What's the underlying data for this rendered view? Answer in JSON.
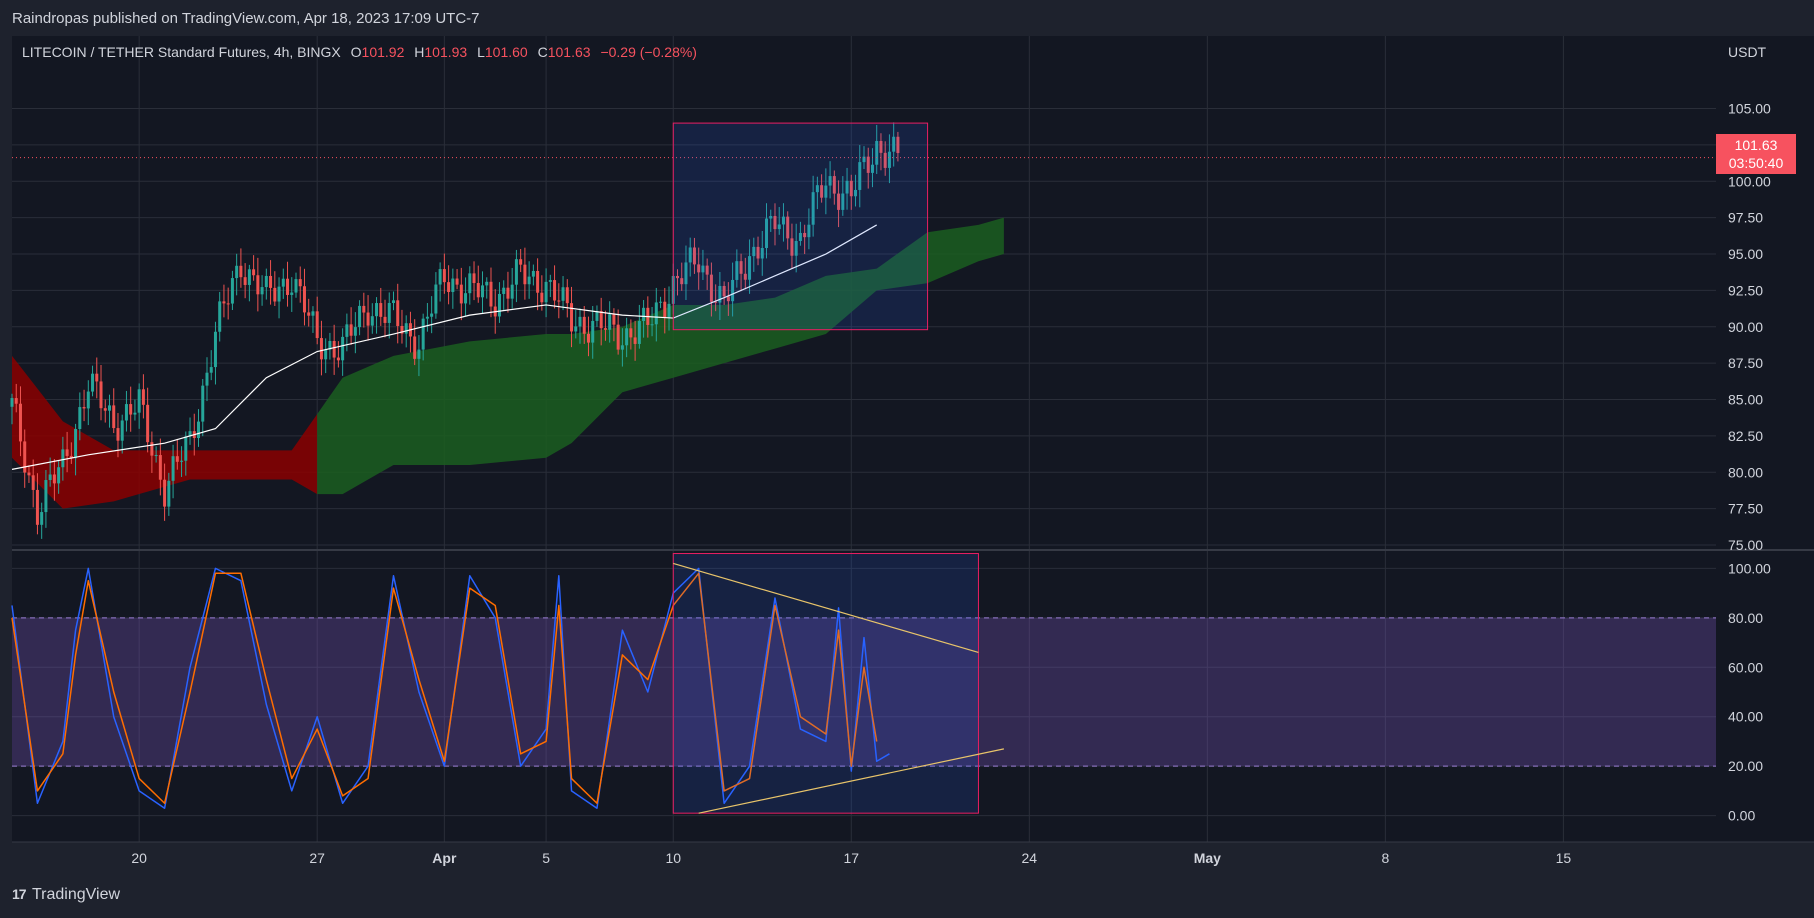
{
  "header": {
    "publisher": "Raindropas published on TradingView.com, Apr 18, 2023 17:09 UTC-7"
  },
  "legend": {
    "symbol": "LITECOIN / TETHER Standard Futures, 4h, BINGX",
    "o_label": "O",
    "o_value": "101.92",
    "h_label": "H",
    "h_value": "101.93",
    "l_label": "L",
    "l_value": "101.60",
    "c_label": "C",
    "c_value": "101.63",
    "change": "−0.29 (−0.28%)"
  },
  "axis": {
    "currency": "USDT"
  },
  "last_price": {
    "value": "101.63",
    "countdown": "03:50:40"
  },
  "brand": {
    "mark": "17",
    "name": "TradingView"
  },
  "colors": {
    "background": "#131722",
    "grid": "#2a2e39",
    "up": "#26a69a",
    "down": "#ef5350",
    "cloud_bull": "#1b5e20",
    "cloud_bear": "#8b0000",
    "ma": "#ffffff",
    "k_line": "#2962ff",
    "d_line": "#ff6d00",
    "box": "#e91e63",
    "trend": "#e8c46a",
    "band": "#7e57c2",
    "last_price": "#f7525f"
  },
  "chart_data": [
    {
      "type": "candlestick",
      "title": "LITECOIN / TETHER Standard Futures, 4h, BINGX",
      "ylabel": "USDT",
      "ylim": [
        75,
        106
      ],
      "y_ticks": [
        "75.00",
        "77.50",
        "80.00",
        "82.50",
        "85.00",
        "87.50",
        "90.00",
        "92.50",
        "95.00",
        "97.50",
        "100.00",
        "102.50",
        "105.00"
      ],
      "x_ticks": [
        "20",
        "27",
        "Apr",
        "5",
        "10",
        "17",
        "24",
        "May",
        "8",
        "15"
      ],
      "x_range": [
        "2023-03-15",
        "2023-05-21"
      ],
      "grid": true,
      "close_path": [
        {
          "x": "2023-03-15",
          "y": 84.5
        },
        {
          "x": "2023-03-16",
          "y": 77.5
        },
        {
          "x": "2023-03-17",
          "y": 80.5
        },
        {
          "x": "2023-03-18",
          "y": 86.0
        },
        {
          "x": "2023-03-19",
          "y": 83.5
        },
        {
          "x": "2023-03-20",
          "y": 84.5
        },
        {
          "x": "2023-03-21",
          "y": 79.0
        },
        {
          "x": "2023-03-22",
          "y": 82.0
        },
        {
          "x": "2023-03-23",
          "y": 89.5
        },
        {
          "x": "2023-03-24",
          "y": 94.5
        },
        {
          "x": "2023-03-25",
          "y": 92.0
        },
        {
          "x": "2023-03-26",
          "y": 93.5
        },
        {
          "x": "2023-03-27",
          "y": 89.0
        },
        {
          "x": "2023-03-28",
          "y": 88.5
        },
        {
          "x": "2023-03-29",
          "y": 91.5
        },
        {
          "x": "2023-03-30",
          "y": 90.5
        },
        {
          "x": "2023-03-31",
          "y": 89.0
        },
        {
          "x": "2023-04-01",
          "y": 93.5
        },
        {
          "x": "2023-04-02",
          "y": 92.5
        },
        {
          "x": "2023-04-03",
          "y": 92.0
        },
        {
          "x": "2023-04-04",
          "y": 93.5
        },
        {
          "x": "2023-04-05",
          "y": 93.0
        },
        {
          "x": "2023-04-06",
          "y": 90.5
        },
        {
          "x": "2023-04-07",
          "y": 90.0
        },
        {
          "x": "2023-04-08",
          "y": 89.5
        },
        {
          "x": "2023-04-09",
          "y": 90.0
        },
        {
          "x": "2023-04-10",
          "y": 93.0
        },
        {
          "x": "2023-04-11",
          "y": 94.5
        },
        {
          "x": "2023-04-12",
          "y": 91.5
        },
        {
          "x": "2023-04-13",
          "y": 95.0
        },
        {
          "x": "2023-04-14",
          "y": 97.0
        },
        {
          "x": "2023-04-15",
          "y": 96.0
        },
        {
          "x": "2023-04-16",
          "y": 100.0
        },
        {
          "x": "2023-04-17",
          "y": 99.0
        },
        {
          "x": "2023-04-18",
          "y": 102.5
        },
        {
          "x": "2023-04-18T20:00",
          "y": 101.63
        }
      ],
      "moving_average": [
        {
          "x": "2023-03-15",
          "y": 80.2
        },
        {
          "x": "2023-03-18",
          "y": 81.2
        },
        {
          "x": "2023-03-21",
          "y": 82.0
        },
        {
          "x": "2023-03-23",
          "y": 83.0
        },
        {
          "x": "2023-03-25",
          "y": 86.5
        },
        {
          "x": "2023-03-27",
          "y": 88.3
        },
        {
          "x": "2023-03-30",
          "y": 89.5
        },
        {
          "x": "2023-04-02",
          "y": 90.8
        },
        {
          "x": "2023-04-05",
          "y": 91.5
        },
        {
          "x": "2023-04-08",
          "y": 90.8
        },
        {
          "x": "2023-04-10",
          "y": 90.6
        },
        {
          "x": "2023-04-12",
          "y": 92.0
        },
        {
          "x": "2023-04-14",
          "y": 93.5
        },
        {
          "x": "2023-04-16",
          "y": 95.0
        },
        {
          "x": "2023-04-18",
          "y": 97.0
        }
      ],
      "cloud": [
        {
          "x": "2023-03-15",
          "upper": 88.0,
          "lower": 81.0
        },
        {
          "x": "2023-03-17",
          "upper": 83.5,
          "lower": 77.5
        },
        {
          "x": "2023-03-19",
          "upper": 81.5,
          "lower": 78.0
        },
        {
          "x": "2023-03-22",
          "upper": 81.5,
          "lower": 79.5
        },
        {
          "x": "2023-03-25",
          "upper": 81.5,
          "lower": 79.5
        },
        {
          "x": "2023-03-26",
          "upper": 81.5,
          "lower": 79.5
        },
        {
          "x": "2023-03-27",
          "upper": 84.0,
          "lower": 78.5
        },
        {
          "x": "2023-03-28",
          "upper": 86.5,
          "lower": 78.5
        },
        {
          "x": "2023-03-30",
          "upper": 88.0,
          "lower": 80.5
        },
        {
          "x": "2023-04-02",
          "upper": 89.0,
          "lower": 80.5
        },
        {
          "x": "2023-04-05",
          "upper": 89.5,
          "lower": 81.0
        },
        {
          "x": "2023-04-06",
          "upper": 89.5,
          "lower": 82.0
        },
        {
          "x": "2023-04-08",
          "upper": 90.0,
          "lower": 85.5
        },
        {
          "x": "2023-04-10",
          "upper": 91.5,
          "lower": 86.5
        },
        {
          "x": "2023-04-12",
          "upper": 91.5,
          "lower": 87.5
        },
        {
          "x": "2023-04-14",
          "upper": 92.0,
          "lower": 88.5
        },
        {
          "x": "2023-04-16",
          "upper": 93.5,
          "lower": 89.5
        },
        {
          "x": "2023-04-18",
          "upper": 94.0,
          "lower": 92.5
        },
        {
          "x": "2023-04-20",
          "upper": 96.5,
          "lower": 93.0
        },
        {
          "x": "2023-04-22",
          "upper": 97.0,
          "lower": 94.5
        },
        {
          "x": "2023-04-23",
          "upper": 97.5,
          "lower": 95.0
        }
      ],
      "cloud_switch_date": "2023-03-27",
      "last_price": 101.63,
      "highlight_box": {
        "x": [
          "2023-04-10",
          "2023-04-20"
        ],
        "y": [
          89.8,
          104.0
        ]
      }
    },
    {
      "type": "line",
      "title": "",
      "ylim": [
        -5,
        105
      ],
      "y_ticks": [
        "0.00",
        "20.00",
        "40.00",
        "60.00",
        "80.00",
        "100.00"
      ],
      "band": [
        20,
        80
      ],
      "series": [
        {
          "key": "k",
          "values": [
            {
              "x": "2023-03-15",
              "y": 85
            },
            {
              "x": "2023-03-16",
              "y": 5
            },
            {
              "x": "2023-03-17",
              "y": 30
            },
            {
              "x": "2023-03-17T12:00",
              "y": 75
            },
            {
              "x": "2023-03-18",
              "y": 100
            },
            {
              "x": "2023-03-19",
              "y": 40
            },
            {
              "x": "2023-03-20",
              "y": 10
            },
            {
              "x": "2023-03-21",
              "y": 3
            },
            {
              "x": "2023-03-22",
              "y": 60
            },
            {
              "x": "2023-03-23",
              "y": 100
            },
            {
              "x": "2023-03-24",
              "y": 95
            },
            {
              "x": "2023-03-25",
              "y": 45
            },
            {
              "x": "2023-03-26",
              "y": 10
            },
            {
              "x": "2023-03-27",
              "y": 40
            },
            {
              "x": "2023-03-28",
              "y": 5
            },
            {
              "x": "2023-03-29",
              "y": 20
            },
            {
              "x": "2023-03-30",
              "y": 97
            },
            {
              "x": "2023-03-31",
              "y": 50
            },
            {
              "x": "2023-04-01",
              "y": 20
            },
            {
              "x": "2023-04-02",
              "y": 97
            },
            {
              "x": "2023-04-03",
              "y": 80
            },
            {
              "x": "2023-04-04",
              "y": 20
            },
            {
              "x": "2023-04-05",
              "y": 35
            },
            {
              "x": "2023-04-05T12:00",
              "y": 97
            },
            {
              "x": "2023-04-06",
              "y": 10
            },
            {
              "x": "2023-04-07",
              "y": 3
            },
            {
              "x": "2023-04-08",
              "y": 75
            },
            {
              "x": "2023-04-09",
              "y": 50
            },
            {
              "x": "2023-04-10",
              "y": 90
            },
            {
              "x": "2023-04-11",
              "y": 100
            },
            {
              "x": "2023-04-12",
              "y": 5
            },
            {
              "x": "2023-04-13",
              "y": 20
            },
            {
              "x": "2023-04-14",
              "y": 88
            },
            {
              "x": "2023-04-15",
              "y": 35
            },
            {
              "x": "2023-04-16",
              "y": 30
            },
            {
              "x": "2023-04-16T12:00",
              "y": 84
            },
            {
              "x": "2023-04-17",
              "y": 18
            },
            {
              "x": "2023-04-17T12:00",
              "y": 72
            },
            {
              "x": "2023-04-18",
              "y": 22
            },
            {
              "x": "2023-04-18T12:00",
              "y": 25
            }
          ]
        },
        {
          "key": "d",
          "values": [
            {
              "x": "2023-03-15",
              "y": 80
            },
            {
              "x": "2023-03-16",
              "y": 10
            },
            {
              "x": "2023-03-17",
              "y": 25
            },
            {
              "x": "2023-03-17T12:00",
              "y": 65
            },
            {
              "x": "2023-03-18",
              "y": 95
            },
            {
              "x": "2023-03-19",
              "y": 50
            },
            {
              "x": "2023-03-20",
              "y": 15
            },
            {
              "x": "2023-03-21",
              "y": 5
            },
            {
              "x": "2023-03-22",
              "y": 50
            },
            {
              "x": "2023-03-23",
              "y": 98
            },
            {
              "x": "2023-03-24",
              "y": 98
            },
            {
              "x": "2023-03-25",
              "y": 55
            },
            {
              "x": "2023-03-26",
              "y": 15
            },
            {
              "x": "2023-03-27",
              "y": 35
            },
            {
              "x": "2023-03-28",
              "y": 8
            },
            {
              "x": "2023-03-29",
              "y": 15
            },
            {
              "x": "2023-03-30",
              "y": 92
            },
            {
              "x": "2023-03-31",
              "y": 55
            },
            {
              "x": "2023-04-01",
              "y": 22
            },
            {
              "x": "2023-04-02",
              "y": 92
            },
            {
              "x": "2023-04-03",
              "y": 85
            },
            {
              "x": "2023-04-04",
              "y": 25
            },
            {
              "x": "2023-04-05",
              "y": 30
            },
            {
              "x": "2023-04-05T12:00",
              "y": 85
            },
            {
              "x": "2023-04-06",
              "y": 15
            },
            {
              "x": "2023-04-07",
              "y": 5
            },
            {
              "x": "2023-04-08",
              "y": 65
            },
            {
              "x": "2023-04-09",
              "y": 55
            },
            {
              "x": "2023-04-10",
              "y": 85
            },
            {
              "x": "2023-04-11",
              "y": 98
            },
            {
              "x": "2023-04-12",
              "y": 10
            },
            {
              "x": "2023-04-13",
              "y": 15
            },
            {
              "x": "2023-04-14",
              "y": 85
            },
            {
              "x": "2023-04-15",
              "y": 40
            },
            {
              "x": "2023-04-16",
              "y": 33
            },
            {
              "x": "2023-04-16T12:00",
              "y": 75
            },
            {
              "x": "2023-04-17",
              "y": 20
            },
            {
              "x": "2023-04-17T12:00",
              "y": 60
            },
            {
              "x": "2023-04-18",
              "y": 30
            }
          ]
        }
      ],
      "highlight_box": {
        "x": [
          "2023-04-10",
          "2023-04-22"
        ],
        "y": [
          1,
          106
        ]
      },
      "trendlines": [
        {
          "from": {
            "x": "2023-04-10",
            "y": 102
          },
          "to": {
            "x": "2023-04-22",
            "y": 66
          }
        },
        {
          "from": {
            "x": "2023-04-11",
            "y": 1
          },
          "to": {
            "x": "2023-04-23",
            "y": 27
          }
        }
      ]
    }
  ]
}
